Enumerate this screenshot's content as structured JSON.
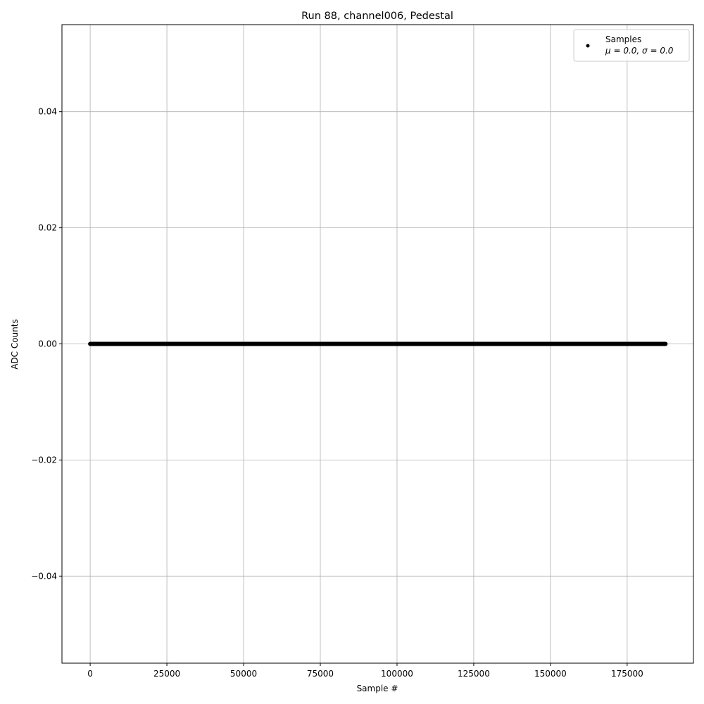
{
  "chart_data": {
    "type": "scatter",
    "title": "Run 88, channel006, Pedestal",
    "xlabel": "Sample #",
    "ylabel": "ADC Counts",
    "xlim": [
      -9200,
      196600
    ],
    "ylim": [
      -0.055,
      0.055
    ],
    "xticks": [
      0,
      25000,
      50000,
      75000,
      100000,
      125000,
      150000,
      175000
    ],
    "xtick_labels": [
      "0",
      "25000",
      "50000",
      "75000",
      "100000",
      "125000",
      "150000",
      "175000"
    ],
    "yticks": [
      -0.04,
      -0.02,
      0.0,
      0.02,
      0.04
    ],
    "ytick_labels": [
      "−0.04",
      "−0.02",
      "0.00",
      "0.02",
      "0.04"
    ],
    "grid": true,
    "legend_position": "top-right",
    "series": [
      {
        "name": "Samples",
        "legend_line2": "μ = 0.0, σ = 0.0",
        "x_range": [
          0,
          187500
        ],
        "y": 0.0,
        "color": "#000000"
      }
    ]
  }
}
